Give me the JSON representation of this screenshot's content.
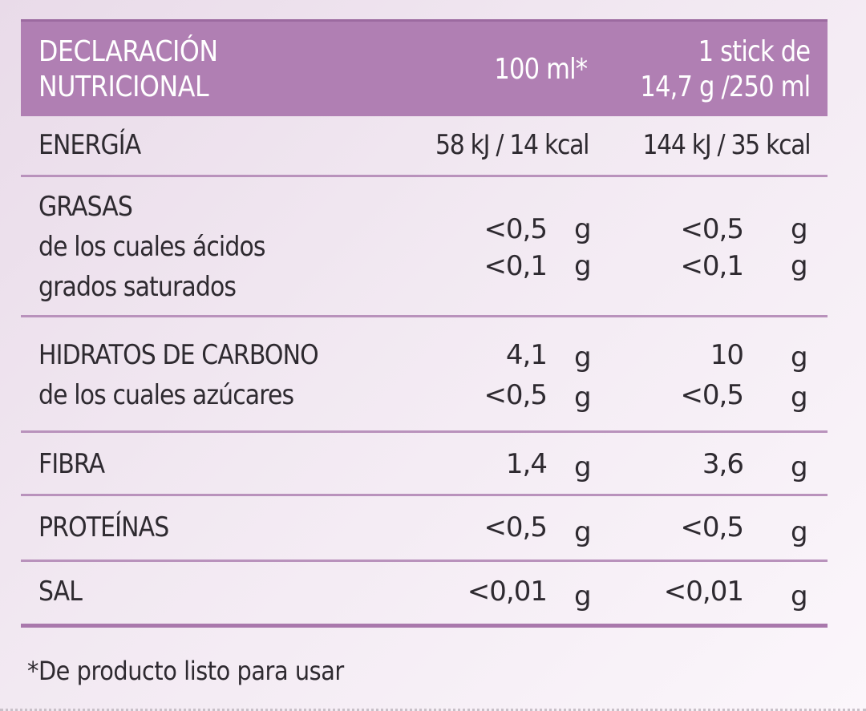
{
  "table": {
    "header": {
      "title_line1": "DECLARACIÓN",
      "title_line2": "NUTRICIONAL",
      "col1": "100 ml*",
      "col2_line1": "1 stick de",
      "col2_line2": "14,7 g /250 ml"
    },
    "energy": {
      "label": "ENERGÍA",
      "col1": "58 kJ / 14 kcal",
      "col2": "144 kJ / 35 kcal"
    },
    "fats": {
      "label_line1": "GRASAS",
      "label_line2": "de los cuales ácidos",
      "label_line3": "grados saturados",
      "col1_a": "<0,5",
      "col1_b": "<0,1",
      "col2_a": "<0,5",
      "col2_b": "<0,1",
      "unit": "g"
    },
    "carbs": {
      "label_line1": "HIDRATOS DE CARBONO",
      "label_line2": "de los cuales azúcares",
      "col1_a": "4,1",
      "col1_b": "<0,5",
      "col2_a": "10",
      "col2_b": "<0,5",
      "unit": "g"
    },
    "fiber": {
      "label": "FIBRA",
      "col1": "1,4",
      "col2": "3,6",
      "unit": "g"
    },
    "protein": {
      "label": "PROTEÍNAS",
      "col1": "<0,5",
      "col2": "<0,5",
      "unit": "g"
    },
    "salt": {
      "label": "SAL",
      "col1": "<0,01",
      "col2": "<0,01",
      "unit": "g"
    }
  },
  "footnote": "*De producto listo para usar",
  "colors": {
    "header_bg": "#b07fb3",
    "divider": "#b992bc",
    "text": "#2e2a30"
  }
}
